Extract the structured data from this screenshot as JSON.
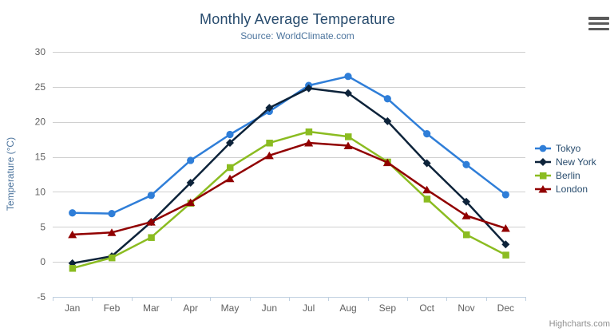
{
  "header": {
    "title": "Monthly Average Temperature",
    "subtitle": "Source: WorldClimate.com"
  },
  "credits_label": "Highcharts.com",
  "chart_data": {
    "type": "line",
    "title": "Monthly Average Temperature",
    "subtitle": "Source: WorldClimate.com",
    "categories": [
      "Jan",
      "Feb",
      "Mar",
      "Apr",
      "May",
      "Jun",
      "Jul",
      "Aug",
      "Sep",
      "Oct",
      "Nov",
      "Dec"
    ],
    "xlabel": "",
    "ylabel": "Temperature (°C)",
    "ylim": [
      -5,
      30
    ],
    "yticks": [
      -5,
      0,
      5,
      10,
      15,
      20,
      25,
      30
    ],
    "grid": true,
    "legend_position": "right",
    "series": [
      {
        "name": "Tokyo",
        "color": "#2f7ed8",
        "marker": "circle",
        "values": [
          7.0,
          6.9,
          9.5,
          14.5,
          18.2,
          21.5,
          25.2,
          26.5,
          23.3,
          18.3,
          13.9,
          9.6
        ]
      },
      {
        "name": "New York",
        "color": "#0d233a",
        "marker": "diamond",
        "values": [
          -0.2,
          0.8,
          5.7,
          11.3,
          17.0,
          22.0,
          24.8,
          24.1,
          20.1,
          14.1,
          8.6,
          2.5
        ]
      },
      {
        "name": "Berlin",
        "color": "#8bbc21",
        "marker": "square",
        "values": [
          -0.9,
          0.6,
          3.5,
          8.4,
          13.5,
          17.0,
          18.6,
          17.9,
          14.3,
          9.0,
          3.9,
          1.0
        ]
      },
      {
        "name": "London",
        "color": "#910000",
        "marker": "triangle",
        "values": [
          3.9,
          4.2,
          5.7,
          8.5,
          11.9,
          15.2,
          17.0,
          16.6,
          14.2,
          10.3,
          6.6,
          4.8
        ]
      }
    ]
  },
  "style_colors": {
    "title": "#274b6d",
    "subtitle": "#4d759e",
    "axis_title": "#4d759e",
    "axis_labels": "#606060",
    "gridline": "#d0d0d0",
    "axis_line": "#c0d0e0",
    "legend_text": "#274b6d",
    "credits": "#909090"
  }
}
